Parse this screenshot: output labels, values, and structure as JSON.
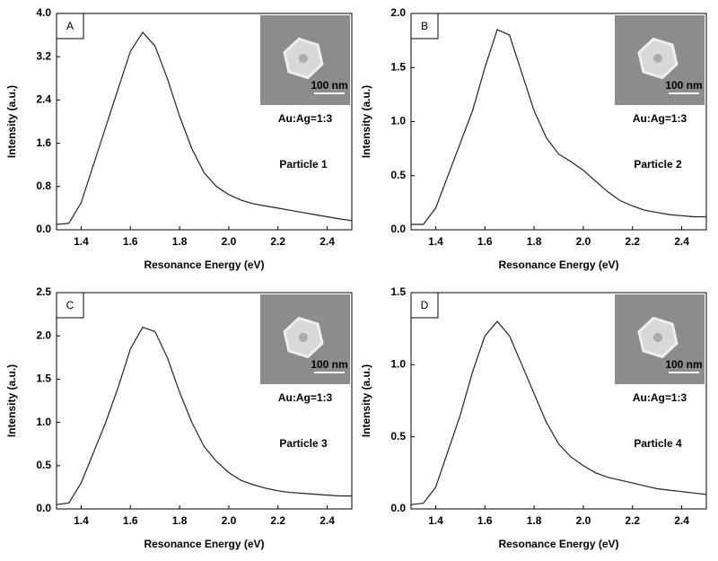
{
  "chart_data": [
    {
      "type": "line",
      "panel": "A",
      "composition": "Au:Ag=1:3",
      "particle": "Particle 1",
      "inset_scale": "100 nm",
      "x_label": "Resonance Energy (eV)",
      "y_label": "Intensity (a.u.)",
      "color": "#222222",
      "x": [
        1.3,
        1.35,
        1.4,
        1.45,
        1.5,
        1.55,
        1.6,
        1.65,
        1.7,
        1.75,
        1.8,
        1.85,
        1.9,
        1.95,
        2.0,
        2.05,
        2.1,
        2.15,
        2.2,
        2.25,
        2.3,
        2.35,
        2.4,
        2.45,
        2.5
      ],
      "values": [
        0.1,
        0.12,
        0.5,
        1.2,
        1.9,
        2.6,
        3.3,
        3.65,
        3.4,
        2.8,
        2.1,
        1.5,
        1.05,
        0.8,
        0.65,
        0.55,
        0.48,
        0.44,
        0.4,
        0.36,
        0.32,
        0.28,
        0.24,
        0.2,
        0.17
      ],
      "xlim": [
        1.3,
        2.5
      ],
      "xticks": [
        1.4,
        1.6,
        1.8,
        {
          "value": 2.0,
          "label": "2.0"
        },
        2.2,
        2.4
      ],
      "ylim": [
        0,
        4
      ],
      "yticks": [
        {
          "value": 0,
          "label": "0.0"
        },
        0.8,
        1.6,
        2.4,
        3.2,
        {
          "value": 4,
          "label": "4.0"
        }
      ]
    },
    {
      "type": "line",
      "panel": "B",
      "composition": "Au:Ag=1:3",
      "particle": "Particle 2",
      "inset_scale": "100 nm",
      "x_label": "Resonance Energy (eV)",
      "y_label": "Intensity (a.u.)",
      "color": "#222222",
      "x": [
        1.3,
        1.35,
        1.4,
        1.45,
        1.5,
        1.55,
        1.6,
        1.65,
        1.7,
        1.75,
        1.8,
        1.85,
        1.9,
        1.95,
        2.0,
        2.05,
        2.1,
        2.15,
        2.2,
        2.25,
        2.3,
        2.35,
        2.4,
        2.45,
        2.5
      ],
      "values": [
        0.05,
        0.05,
        0.2,
        0.5,
        0.8,
        1.1,
        1.5,
        1.85,
        1.8,
        1.45,
        1.1,
        0.85,
        0.7,
        0.63,
        0.55,
        0.45,
        0.35,
        0.27,
        0.22,
        0.18,
        0.16,
        0.14,
        0.13,
        0.12,
        0.12
      ],
      "xlim": [
        1.3,
        2.5
      ],
      "xticks": [
        1.4,
        1.6,
        1.8,
        {
          "value": 2.0,
          "label": "2.0"
        },
        2.2,
        2.4
      ],
      "ylim": [
        0,
        2
      ],
      "yticks": [
        {
          "value": 0,
          "label": "0.0"
        },
        0.5,
        {
          "value": 1,
          "label": "1.0"
        },
        1.5,
        {
          "value": 2,
          "label": "2.0"
        }
      ]
    },
    {
      "type": "line",
      "panel": "C",
      "composition": "Au:Ag=1:3",
      "particle": "Particle 3",
      "inset_scale": "100 nm",
      "x_label": "Resonance Energy (eV)",
      "y_label": "Intensity (a.u.)",
      "color": "#222222",
      "x": [
        1.3,
        1.35,
        1.4,
        1.45,
        1.5,
        1.55,
        1.6,
        1.65,
        1.7,
        1.75,
        1.8,
        1.85,
        1.9,
        1.95,
        2.0,
        2.05,
        2.1,
        2.15,
        2.2,
        2.25,
        2.3,
        2.35,
        2.4,
        2.45,
        2.5
      ],
      "values": [
        0.05,
        0.07,
        0.3,
        0.65,
        1.0,
        1.4,
        1.85,
        2.1,
        2.05,
        1.75,
        1.35,
        1.0,
        0.72,
        0.55,
        0.42,
        0.33,
        0.28,
        0.24,
        0.21,
        0.19,
        0.18,
        0.17,
        0.16,
        0.15,
        0.15
      ],
      "xlim": [
        1.3,
        2.5
      ],
      "xticks": [
        1.4,
        1.6,
        1.8,
        {
          "value": 2.0,
          "label": "2.0"
        },
        2.2,
        2.4
      ],
      "ylim": [
        0,
        2.5
      ],
      "yticks": [
        {
          "value": 0,
          "label": "0.0"
        },
        0.5,
        {
          "value": 1,
          "label": "1.0"
        },
        1.5,
        {
          "value": 2,
          "label": "2.0"
        },
        2.5
      ]
    },
    {
      "type": "line",
      "panel": "D",
      "composition": "Au:Ag=1:3",
      "particle": "Particle 4",
      "inset_scale": "100 nm",
      "x_label": "Resonance Energy (eV)",
      "y_label": "Intensity (a.u.)",
      "color": "#222222",
      "x": [
        1.3,
        1.35,
        1.4,
        1.45,
        1.5,
        1.55,
        1.6,
        1.65,
        1.7,
        1.75,
        1.8,
        1.85,
        1.9,
        1.95,
        2.0,
        2.05,
        2.1,
        2.15,
        2.2,
        2.25,
        2.3,
        2.35,
        2.4,
        2.45,
        2.5
      ],
      "values": [
        0.03,
        0.04,
        0.15,
        0.4,
        0.65,
        0.95,
        1.2,
        1.3,
        1.2,
        1.0,
        0.8,
        0.6,
        0.45,
        0.36,
        0.3,
        0.25,
        0.22,
        0.2,
        0.18,
        0.16,
        0.14,
        0.13,
        0.12,
        0.11,
        0.1
      ],
      "xlim": [
        1.3,
        2.5
      ],
      "xticks": [
        1.4,
        1.6,
        1.8,
        {
          "value": 2.0,
          "label": "2.0"
        },
        2.2,
        2.4
      ],
      "ylim": [
        0,
        1.5
      ],
      "yticks": [
        {
          "value": 0,
          "label": "0.0"
        },
        0.5,
        {
          "value": 1,
          "label": "1.0"
        },
        1.5
      ]
    }
  ]
}
